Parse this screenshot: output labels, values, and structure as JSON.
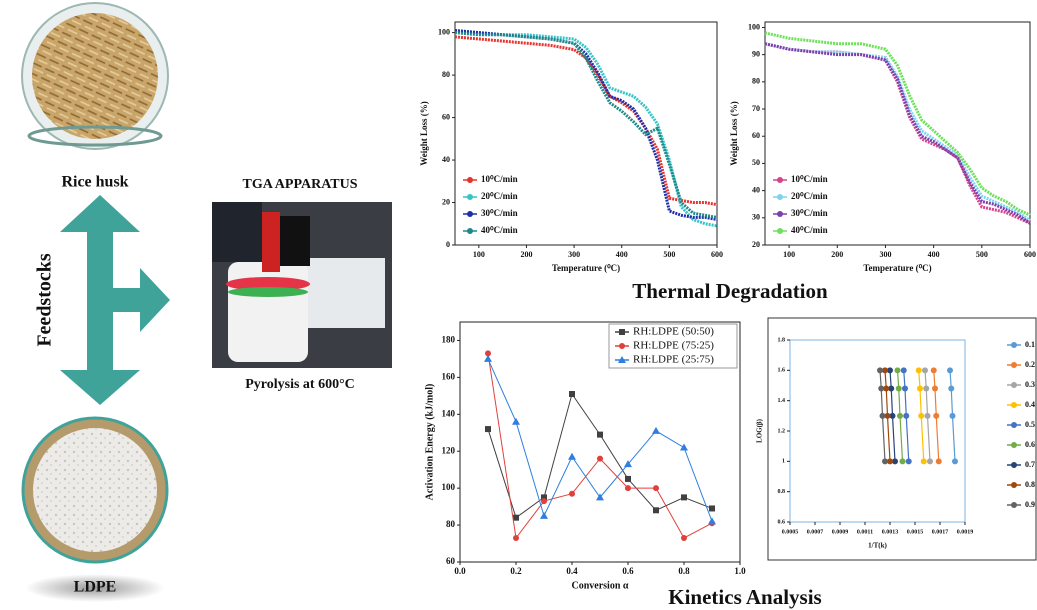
{
  "left": {
    "rice_husk": "Rice husk",
    "feedstocks": "Feedstocks",
    "ldpe": "LDPE"
  },
  "apparatus": {
    "title": "TGA APPARATUS",
    "caption": "Pyrolysis at 600°C"
  },
  "sections": {
    "thermal": "Thermal Degradation",
    "kinetics": "Kinetics Analysis"
  },
  "chart_data": [
    {
      "type": "line",
      "xlabel": "Temperature (⁰C)",
      "ylabel": "Weight Loss (%)",
      "x": [
        50,
        100,
        150,
        200,
        250,
        300,
        325,
        350,
        375,
        400,
        425,
        450,
        475,
        500,
        525,
        550,
        575,
        600
      ],
      "xlim": [
        50,
        600
      ],
      "xticks": [
        100,
        200,
        300,
        400,
        500,
        600
      ],
      "ylim": [
        0,
        105
      ],
      "yticks": [
        0,
        20,
        40,
        60,
        80,
        100
      ],
      "legend": "lower left",
      "series": [
        {
          "name": "10⁰C/min",
          "color": "#e8322e",
          "values": [
            98,
            97,
            96,
            95,
            94,
            92,
            88,
            80,
            70,
            67,
            63,
            55,
            45,
            22,
            21,
            20,
            20,
            19
          ]
        },
        {
          "name": "20⁰C/min",
          "color": "#35c4c8",
          "values": [
            101,
            100,
            99,
            99,
            98,
            97,
            93,
            85,
            74,
            72,
            70,
            65,
            57,
            40,
            18,
            12,
            10,
            9
          ]
        },
        {
          "name": "30⁰C/min",
          "color": "#1f2fa8",
          "values": [
            101,
            100,
            99,
            98,
            97,
            95,
            90,
            81,
            70,
            68,
            64,
            55,
            40,
            16,
            14,
            13,
            13,
            12
          ]
        },
        {
          "name": "40⁰C/min",
          "color": "#1d8a8a",
          "values": [
            100,
            99,
            99,
            98,
            97,
            95,
            88,
            77,
            67,
            63,
            58,
            52,
            55,
            38,
            20,
            15,
            14,
            13
          ]
        }
      ]
    },
    {
      "type": "line",
      "xlabel": "Temperature (⁰C)",
      "ylabel": "Weight Loss (%)",
      "x": [
        50,
        100,
        150,
        200,
        250,
        300,
        325,
        350,
        375,
        400,
        425,
        450,
        475,
        500,
        525,
        550,
        575,
        600
      ],
      "xlim": [
        50,
        600
      ],
      "xticks": [
        100,
        200,
        300,
        400,
        500,
        600
      ],
      "ylim": [
        20,
        102
      ],
      "yticks": [
        20,
        30,
        40,
        50,
        60,
        70,
        80,
        90,
        100
      ],
      "legend": "lower left",
      "series": [
        {
          "name": "10⁰C/min",
          "color": "#d9428a",
          "values": [
            94,
            92,
            91,
            91,
            90,
            88,
            80,
            67,
            59,
            57,
            55,
            52,
            42,
            34,
            33,
            32,
            30,
            28
          ]
        },
        {
          "name": "20⁰C/min",
          "color": "#7fd3ee",
          "values": [
            94,
            92,
            91,
            91,
            90,
            89,
            82,
            70,
            62,
            59,
            56,
            53,
            45,
            38,
            36,
            34,
            32,
            29
          ]
        },
        {
          "name": "30⁰C/min",
          "color": "#7d3fb0",
          "values": [
            94,
            92,
            91,
            90,
            90,
            88,
            81,
            68,
            60,
            58,
            55,
            52,
            43,
            36,
            35,
            33,
            31,
            28
          ]
        },
        {
          "name": "40⁰C/min",
          "color": "#6ee05a",
          "values": [
            98,
            96,
            95,
            94,
            94,
            92,
            86,
            75,
            66,
            62,
            58,
            54,
            48,
            41,
            38,
            36,
            33,
            31
          ]
        }
      ]
    },
    {
      "type": "line",
      "xlabel": "Conversion α",
      "ylabel": "Activation Energy (kJ/mol)",
      "x": [
        0.1,
        0.2,
        0.3,
        0.4,
        0.5,
        0.6,
        0.7,
        0.8,
        0.9
      ],
      "xlim": [
        0,
        1
      ],
      "xticks": [
        {
          "value": 0,
          "label": "0.0"
        },
        0.2,
        0.4,
        0.6,
        0.8,
        {
          "value": 1,
          "label": "1.0"
        }
      ],
      "ylim": [
        60,
        190
      ],
      "yticks": [
        60,
        80,
        100,
        120,
        140,
        160,
        180
      ],
      "legend": "upper right",
      "series": [
        {
          "name": "RH:LDPE (50:50)",
          "color": "#404040",
          "marker": "square",
          "values": [
            132,
            84,
            95,
            151,
            129,
            105,
            88,
            95,
            89
          ]
        },
        {
          "name": "RH:LDPE (75:25)",
          "color": "#e0403c",
          "marker": "circle",
          "values": [
            173,
            73,
            93,
            97,
            116,
            100,
            100,
            73,
            81
          ]
        },
        {
          "name": "RH:LDPE (25:75)",
          "color": "#2f7fe0",
          "marker": "triangle",
          "values": [
            170,
            136,
            85,
            117,
            95,
            113,
            131,
            122,
            82
          ]
        }
      ]
    },
    {
      "type": "scatter",
      "xlabel": "1/T(k)",
      "ylabel": "LOG(β)",
      "xlim": [
        0.0005,
        0.0019
      ],
      "xticks": [
        0.0005,
        0.0007,
        0.0009,
        0.0011,
        0.0013,
        0.0015,
        0.0017,
        0.0019
      ],
      "ylim": [
        0.6,
        1.8
      ],
      "yticks": [
        0.6,
        0.8,
        1,
        1.2,
        1.4,
        1.6,
        1.8
      ],
      "legend": "right",
      "series": [
        {
          "name": "0.1",
          "color": "#5b9bd5",
          "x": [
            0.00182,
            0.0018,
            0.00179,
            0.00178
          ],
          "values": [
            1,
            1.3,
            1.48,
            1.6
          ]
        },
        {
          "name": "0.2",
          "color": "#ed7d31",
          "x": [
            0.00169,
            0.00167,
            0.00166,
            0.00165
          ],
          "values": [
            1,
            1.3,
            1.48,
            1.6
          ]
        },
        {
          "name": "0.3",
          "color": "#a5a5a5",
          "x": [
            0.00162,
            0.0016,
            0.00159,
            0.00158
          ],
          "values": [
            1,
            1.3,
            1.48,
            1.6
          ]
        },
        {
          "name": "0.4",
          "color": "#ffc000",
          "x": [
            0.00157,
            0.00155,
            0.00154,
            0.00153
          ],
          "values": [
            1,
            1.3,
            1.48,
            1.6
          ]
        },
        {
          "name": "0.5",
          "color": "#4472c4",
          "x": [
            0.00145,
            0.00143,
            0.00142,
            0.00141
          ],
          "values": [
            1,
            1.3,
            1.48,
            1.6
          ]
        },
        {
          "name": "0.6",
          "color": "#70ad47",
          "x": [
            0.0014,
            0.00138,
            0.00137,
            0.00136
          ],
          "values": [
            1,
            1.3,
            1.48,
            1.6
          ]
        },
        {
          "name": "0.7",
          "color": "#264478",
          "x": [
            0.00134,
            0.00132,
            0.00131,
            0.0013
          ],
          "values": [
            1,
            1.3,
            1.48,
            1.6
          ]
        },
        {
          "name": "0.8",
          "color": "#9e480e",
          "x": [
            0.0013,
            0.00128,
            0.00127,
            0.00126
          ],
          "values": [
            1,
            1.3,
            1.48,
            1.6
          ]
        },
        {
          "name": "0.9",
          "color": "#636363",
          "x": [
            0.00126,
            0.00124,
            0.00123,
            0.00122
          ],
          "values": [
            1,
            1.3,
            1.48,
            1.6
          ]
        }
      ]
    }
  ]
}
